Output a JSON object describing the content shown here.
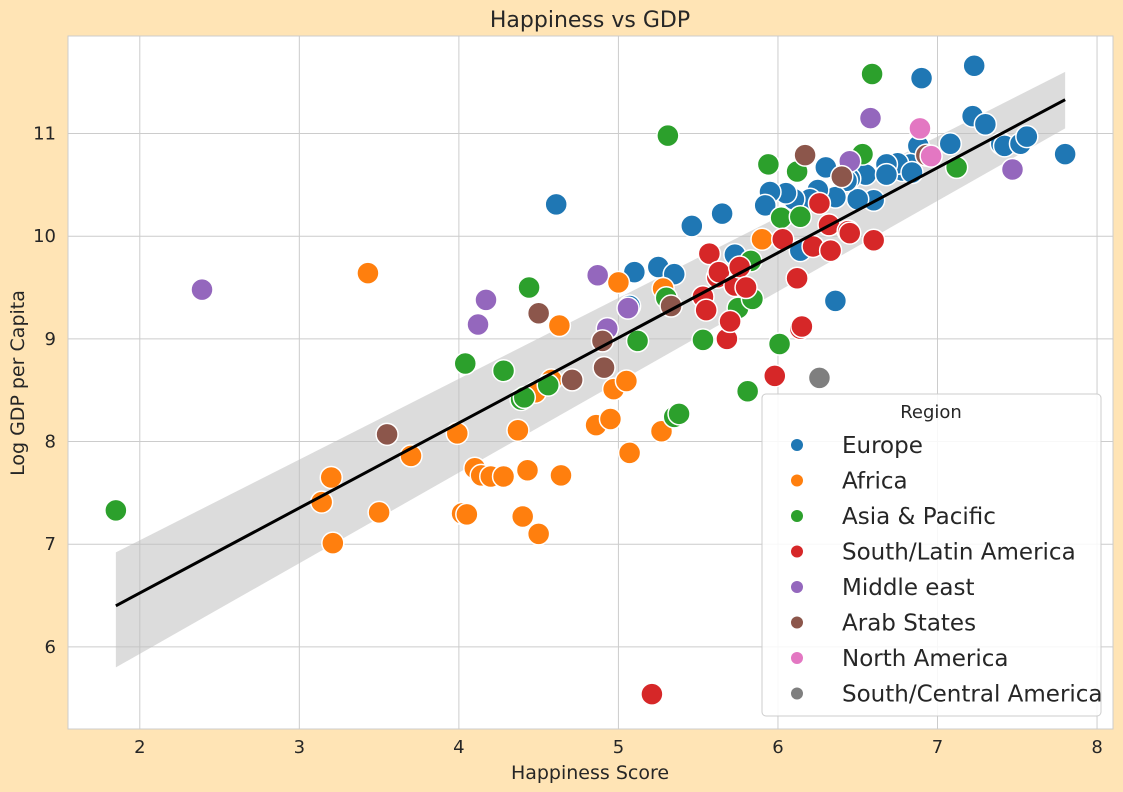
{
  "chart_data": {
    "type": "scatter",
    "title": "Happiness vs GDP",
    "xlabel": "Happiness Score",
    "ylabel": "Log GDP per Capita",
    "xlim": [
      1.55,
      8.1
    ],
    "ylim": [
      5.2,
      11.95
    ],
    "xticks": [
      2,
      3,
      4,
      5,
      6,
      7,
      8
    ],
    "yticks": [
      6,
      7,
      8,
      9,
      10,
      11
    ],
    "grid": true,
    "legend": {
      "title": "Region",
      "placement": "lower-right"
    },
    "regression": {
      "x": [
        1.85,
        7.8
      ],
      "y": [
        6.4,
        11.33
      ],
      "ci_lower": [
        5.8,
        11.05
      ],
      "ci_upper": [
        6.92,
        11.6
      ]
    },
    "series": [
      {
        "name": "Europe",
        "color": "#1f77b4",
        "x": [
          7.23,
          6.9,
          7.22,
          7.3,
          7.4,
          7.42,
          7.52,
          7.56,
          7.8,
          7.08,
          6.88,
          6.83,
          6.78,
          6.75,
          6.68,
          6.6,
          6.55,
          6.5,
          6.45,
          6.43,
          6.36,
          6.3,
          6.25,
          6.2,
          6.1,
          6.05,
          5.95,
          5.92,
          6.14,
          6.36,
          4.61,
          5.46,
          5.65,
          5.73,
          5.78,
          5.25,
          5.1,
          5.07,
          5.35,
          6.68,
          6.84
        ],
        "y": [
          11.66,
          11.54,
          11.17,
          11.09,
          10.9,
          10.88,
          10.9,
          10.97,
          10.8,
          10.9,
          10.88,
          10.7,
          10.64,
          10.71,
          10.7,
          10.35,
          10.6,
          10.36,
          10.56,
          10.54,
          10.38,
          10.67,
          10.45,
          10.36,
          10.36,
          10.42,
          10.43,
          10.3,
          9.86,
          9.37,
          10.31,
          10.1,
          10.22,
          9.82,
          9.5,
          9.7,
          9.65,
          9.32,
          9.63,
          10.6,
          10.62
        ]
      },
      {
        "name": "Africa",
        "color": "#ff7f0e",
        "x": [
          3.43,
          3.14,
          3.2,
          3.21,
          3.5,
          3.7,
          3.99,
          4.02,
          4.05,
          4.1,
          4.14,
          4.2,
          4.28,
          4.37,
          4.4,
          4.43,
          4.5,
          4.48,
          4.58,
          4.63,
          4.64,
          4.86,
          4.95,
          4.97,
          5.0,
          5.05,
          5.07,
          5.27,
          5.28,
          5.9
        ],
        "y": [
          9.64,
          7.41,
          7.65,
          7.01,
          7.31,
          7.86,
          8.08,
          7.3,
          7.29,
          7.74,
          7.67,
          7.66,
          7.66,
          8.11,
          7.27,
          7.72,
          7.1,
          8.48,
          8.6,
          9.13,
          7.67,
          8.16,
          8.22,
          8.51,
          9.55,
          8.59,
          7.89,
          8.1,
          9.49,
          9.97
        ]
      },
      {
        "name": "Asia & Pacific",
        "color": "#2ca02c",
        "x": [
          1.85,
          4.04,
          4.28,
          4.39,
          4.41,
          4.44,
          4.56,
          5.12,
          5.3,
          5.31,
          5.35,
          5.38,
          5.53,
          5.75,
          5.81,
          5.83,
          5.84,
          5.94,
          6.01,
          6.02,
          6.12,
          6.14,
          6.53,
          6.59,
          7.12
        ],
        "y": [
          7.33,
          8.76,
          8.69,
          8.41,
          8.43,
          9.5,
          8.55,
          8.98,
          9.4,
          10.98,
          8.24,
          8.27,
          8.99,
          9.3,
          8.49,
          9.76,
          9.39,
          10.7,
          8.95,
          10.18,
          10.63,
          10.19,
          10.8,
          11.58,
          10.67
        ]
      },
      {
        "name": "South/Latin America",
        "color": "#d62728",
        "x": [
          5.21,
          5.53,
          5.55,
          5.57,
          5.62,
          5.63,
          5.68,
          5.7,
          5.73,
          5.76,
          5.8,
          5.98,
          6.03,
          6.12,
          6.14,
          6.15,
          6.22,
          6.26,
          6.32,
          6.33,
          6.44,
          6.45,
          6.6
        ],
        "y": [
          5.54,
          9.41,
          9.28,
          9.83,
          9.6,
          9.65,
          9.0,
          9.17,
          9.52,
          9.7,
          9.5,
          8.64,
          9.97,
          9.59,
          9.1,
          9.12,
          9.9,
          10.32,
          10.11,
          9.86,
          10.05,
          10.03,
          9.96
        ]
      },
      {
        "name": "Middle east",
        "color": "#9467bd",
        "x": [
          2.39,
          4.12,
          4.17,
          4.87,
          4.93,
          5.06,
          6.45,
          6.58,
          7.47
        ],
        "y": [
          9.48,
          9.14,
          9.38,
          9.62,
          9.1,
          9.3,
          10.73,
          11.15,
          10.65
        ]
      },
      {
        "name": "Arab States",
        "color": "#8c564b",
        "x": [
          3.55,
          4.5,
          4.71,
          4.9,
          4.91,
          5.33,
          6.17,
          6.4,
          6.93
        ],
        "y": [
          8.07,
          9.25,
          8.6,
          8.98,
          8.72,
          9.32,
          10.79,
          10.58,
          10.79
        ]
      },
      {
        "name": "North America",
        "color": "#e377c2",
        "x": [
          6.89,
          6.96
        ],
        "y": [
          11.05,
          10.78
        ]
      },
      {
        "name": "South/Central America",
        "color": "#7f7f7f",
        "x": [
          6.26
        ],
        "y": [
          8.62
        ]
      }
    ]
  }
}
